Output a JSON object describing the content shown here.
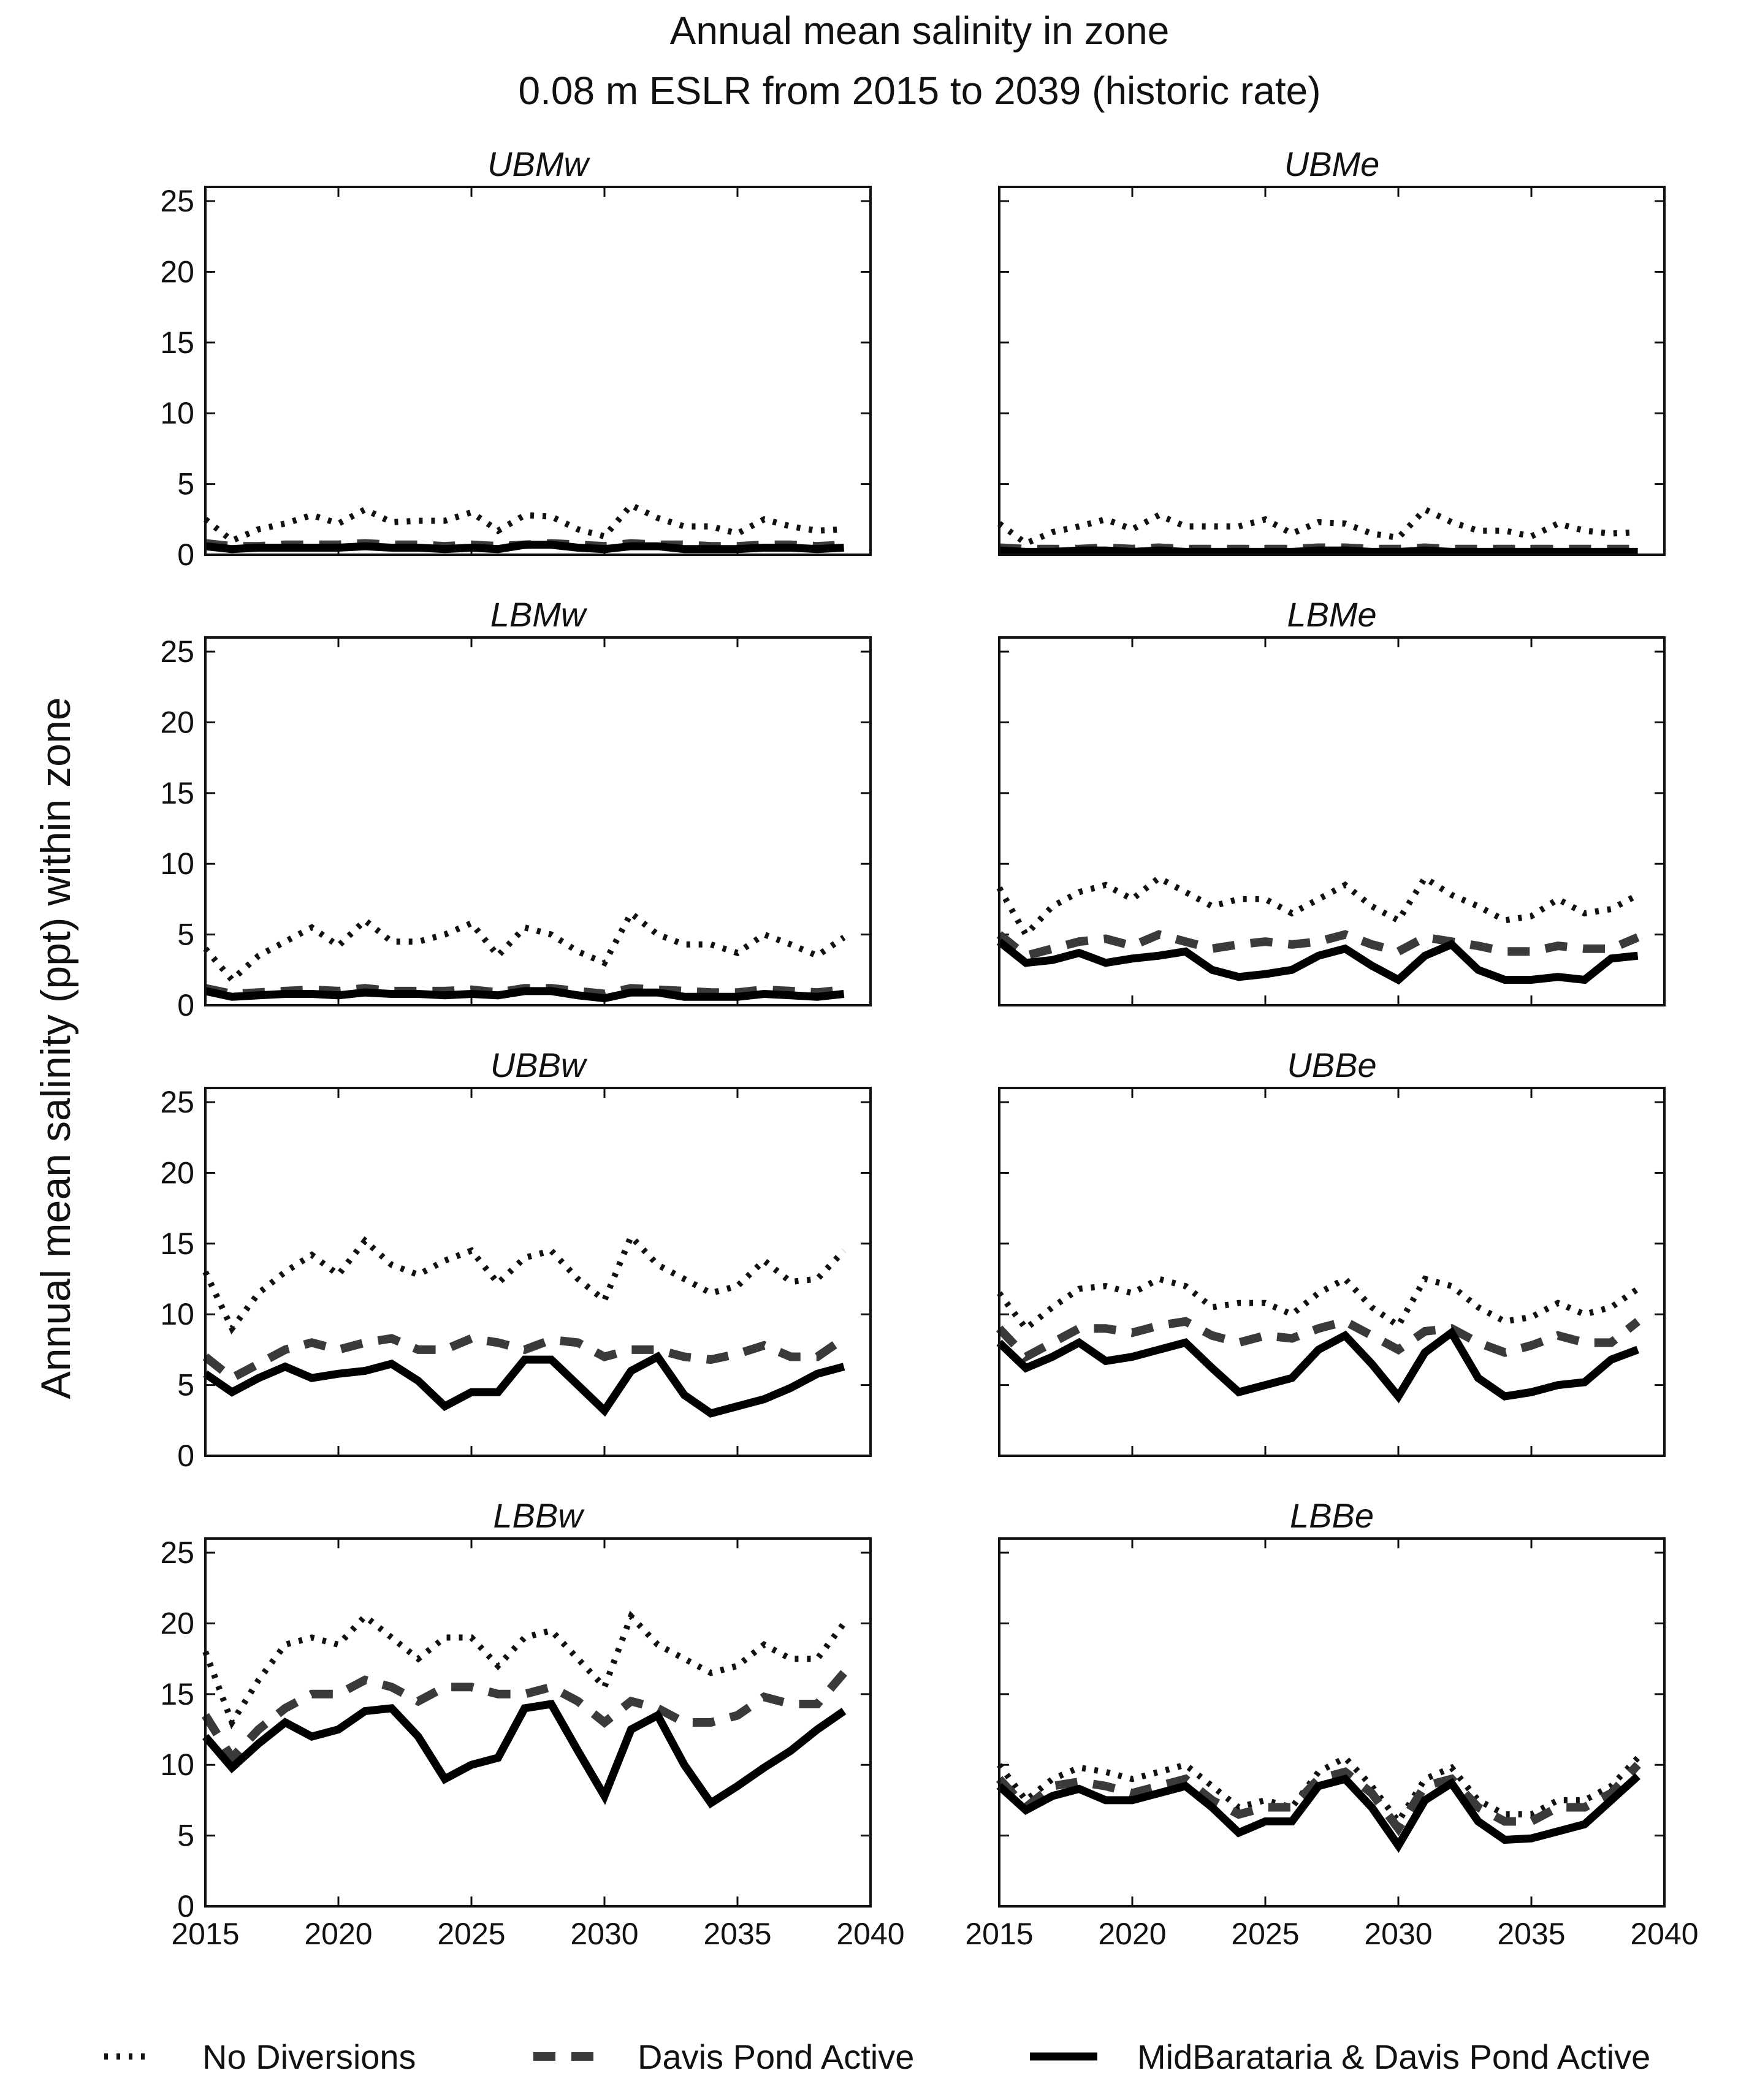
{
  "chart_data": {
    "type": "line",
    "title_lines": [
      "Annual mean salinity in zone",
      "0.08 m ESLR from 2015 to 2039 (historic rate)"
    ],
    "ylabel": "Annual mean salinity (ppt) within zone",
    "xlim": [
      2015,
      2040
    ],
    "ylim": [
      0,
      26
    ],
    "xticks": [
      "2015",
      "2020",
      "2025",
      "2030",
      "2035",
      "2040"
    ],
    "yticks": [
      "0",
      "5",
      "10",
      "15",
      "20",
      "25"
    ],
    "x": [
      2015,
      2016,
      2017,
      2018,
      2019,
      2020,
      2021,
      2022,
      2023,
      2024,
      2025,
      2026,
      2027,
      2028,
      2029,
      2030,
      2031,
      2032,
      2033,
      2034,
      2035,
      2036,
      2037,
      2038,
      2039
    ],
    "legend": [
      {
        "name": "No Diversions",
        "style": "dotted"
      },
      {
        "name": "Davis Pond Active",
        "style": "dashed"
      },
      {
        "name": "MidBarataria & Davis Pond Active",
        "style": "solid"
      }
    ],
    "colors": {
      "no_div": "#111111",
      "davis": "#3a3a3a",
      "mid": "#000000"
    },
    "panels": [
      {
        "title": "UBMw",
        "series": [
          {
            "name": "No Diversions",
            "values": [
              2.5,
              1.0,
              1.8,
              2.2,
              2.8,
              2.2,
              3.2,
              2.3,
              2.4,
              2.4,
              3.0,
              1.7,
              2.8,
              2.7,
              1.8,
              1.3,
              3.5,
              2.6,
              2.0,
              2.0,
              1.5,
              2.5,
              2.0,
              1.7,
              1.8
            ]
          },
          {
            "name": "Davis Pond Active",
            "values": [
              0.8,
              0.6,
              0.6,
              0.7,
              0.7,
              0.7,
              0.8,
              0.7,
              0.7,
              0.6,
              0.7,
              0.6,
              0.7,
              0.8,
              0.7,
              0.6,
              0.8,
              0.7,
              0.7,
              0.6,
              0.6,
              0.7,
              0.7,
              0.6,
              0.7
            ]
          },
          {
            "name": "MidBarataria & Davis Pond Active",
            "values": [
              0.6,
              0.4,
              0.5,
              0.5,
              0.5,
              0.5,
              0.6,
              0.5,
              0.5,
              0.4,
              0.5,
              0.4,
              0.7,
              0.7,
              0.5,
              0.4,
              0.6,
              0.6,
              0.4,
              0.4,
              0.4,
              0.5,
              0.5,
              0.4,
              0.5
            ]
          }
        ]
      },
      {
        "title": "UBMe",
        "series": [
          {
            "name": "No Diversions",
            "values": [
              2.2,
              0.8,
              1.6,
              2.0,
              2.5,
              1.8,
              2.8,
              2.0,
              2.0,
              2.0,
              2.5,
              1.5,
              2.3,
              2.2,
              1.5,
              1.2,
              3.2,
              2.3,
              1.7,
              1.7,
              1.3,
              2.2,
              1.7,
              1.5,
              1.6
            ]
          },
          {
            "name": "Davis Pond Active",
            "values": [
              0.5,
              0.4,
              0.4,
              0.4,
              0.5,
              0.4,
              0.5,
              0.4,
              0.4,
              0.4,
              0.4,
              0.4,
              0.5,
              0.5,
              0.4,
              0.4,
              0.5,
              0.4,
              0.4,
              0.4,
              0.4,
              0.4,
              0.4,
              0.4,
              0.4
            ]
          },
          {
            "name": "MidBarataria & Davis Pond Active",
            "values": [
              0.3,
              0.2,
              0.2,
              0.3,
              0.3,
              0.2,
              0.3,
              0.2,
              0.2,
              0.2,
              0.2,
              0.2,
              0.3,
              0.3,
              0.2,
              0.2,
              0.3,
              0.2,
              0.2,
              0.2,
              0.2,
              0.2,
              0.2,
              0.2,
              0.2
            ]
          }
        ]
      },
      {
        "title": "LBMw",
        "series": [
          {
            "name": "No Diversions",
            "values": [
              4.0,
              1.8,
              3.5,
              4.5,
              5.5,
              4.2,
              6.0,
              4.5,
              4.5,
              5.0,
              5.8,
              3.5,
              5.5,
              5.0,
              3.8,
              3.0,
              6.5,
              5.0,
              4.3,
              4.3,
              3.7,
              5.0,
              4.3,
              3.5,
              4.8
            ]
          },
          {
            "name": "Davis Pond Active",
            "values": [
              1.2,
              0.8,
              0.9,
              1.0,
              1.1,
              1.0,
              1.2,
              1.0,
              1.0,
              1.0,
              1.1,
              0.9,
              1.2,
              1.2,
              1.0,
              0.8,
              1.2,
              1.1,
              1.0,
              0.9,
              0.9,
              1.1,
              1.0,
              0.9,
              1.1
            ]
          },
          {
            "name": "MidBarataria & Davis Pond Active",
            "values": [
              1.0,
              0.6,
              0.7,
              0.8,
              0.8,
              0.7,
              0.9,
              0.8,
              0.8,
              0.7,
              0.8,
              0.7,
              1.0,
              1.0,
              0.7,
              0.5,
              0.9,
              0.9,
              0.6,
              0.6,
              0.6,
              0.8,
              0.7,
              0.6,
              0.8
            ]
          }
        ]
      },
      {
        "title": "LBMe",
        "series": [
          {
            "name": "No Diversions",
            "values": [
              8.3,
              5.0,
              7.0,
              8.0,
              8.5,
              7.5,
              9.0,
              8.0,
              7.0,
              7.5,
              7.5,
              6.5,
              7.5,
              8.5,
              7.0,
              6.0,
              9.0,
              7.8,
              7.0,
              6.0,
              6.3,
              7.5,
              6.5,
              6.8,
              7.8
            ]
          },
          {
            "name": "Davis Pond Active",
            "values": [
              5.0,
              3.5,
              4.0,
              4.5,
              4.7,
              4.2,
              5.0,
              4.5,
              4.0,
              4.3,
              4.5,
              4.3,
              4.5,
              5.0,
              4.3,
              3.8,
              4.8,
              4.5,
              4.2,
              3.8,
              3.8,
              4.2,
              4.0,
              4.0,
              4.8
            ]
          },
          {
            "name": "MidBarataria & Davis Pond Active",
            "values": [
              4.5,
              3.0,
              3.2,
              3.7,
              3.0,
              3.3,
              3.5,
              3.8,
              2.5,
              2.0,
              2.2,
              2.5,
              3.5,
              4.0,
              2.8,
              1.8,
              3.5,
              4.3,
              2.5,
              1.8,
              1.8,
              2.0,
              1.8,
              3.3,
              3.5
            ]
          }
        ]
      },
      {
        "title": "UBBw",
        "series": [
          {
            "name": "No Diversions",
            "values": [
              13.0,
              9.0,
              11.5,
              13.0,
              14.2,
              12.8,
              15.2,
              13.5,
              12.8,
              13.8,
              14.5,
              12.2,
              14.0,
              14.5,
              12.5,
              11.0,
              15.5,
              13.5,
              12.5,
              11.5,
              12.0,
              13.8,
              12.3,
              12.5,
              14.5
            ]
          },
          {
            "name": "Davis Pond Active",
            "values": [
              7.0,
              5.5,
              6.5,
              7.5,
              8.0,
              7.5,
              8.0,
              8.3,
              7.5,
              7.5,
              8.3,
              8.0,
              7.5,
              8.2,
              8.0,
              7.0,
              7.5,
              7.5,
              7.0,
              6.8,
              7.2,
              7.8,
              7.0,
              7.0,
              8.3
            ]
          },
          {
            "name": "MidBarataria & Davis Pond Active",
            "values": [
              5.8,
              4.5,
              5.5,
              6.3,
              5.5,
              5.8,
              6.0,
              6.5,
              5.3,
              3.5,
              4.5,
              4.5,
              6.8,
              6.8,
              5.0,
              3.2,
              6.0,
              7.0,
              4.3,
              3.0,
              3.5,
              4.0,
              4.8,
              5.8,
              6.3
            ]
          }
        ]
      },
      {
        "title": "UBBe",
        "series": [
          {
            "name": "No Diversions",
            "values": [
              11.5,
              9.0,
              10.5,
              11.8,
              12.0,
              11.5,
              12.5,
              12.0,
              10.5,
              10.8,
              10.8,
              10.0,
              11.5,
              12.5,
              10.5,
              9.2,
              12.5,
              12.0,
              10.5,
              9.5,
              9.8,
              10.8,
              10.0,
              10.5,
              11.8
            ]
          },
          {
            "name": "Davis Pond Active",
            "values": [
              9.0,
              7.0,
              8.0,
              9.0,
              9.0,
              8.7,
              9.2,
              9.5,
              8.5,
              8.0,
              8.5,
              8.3,
              9.0,
              9.5,
              8.5,
              7.5,
              8.8,
              9.0,
              8.0,
              7.3,
              7.8,
              8.5,
              8.0,
              8.0,
              9.5
            ]
          },
          {
            "name": "MidBarataria & Davis Pond Active",
            "values": [
              8.0,
              6.2,
              7.0,
              8.0,
              6.7,
              7.0,
              7.5,
              8.0,
              6.2,
              4.5,
              5.0,
              5.5,
              7.5,
              8.5,
              6.5,
              4.2,
              7.3,
              8.7,
              5.5,
              4.2,
              4.5,
              5.0,
              5.2,
              6.8,
              7.5
            ]
          }
        ]
      },
      {
        "title": "LBBw",
        "series": [
          {
            "name": "No Diversions",
            "values": [
              18.0,
              13.0,
              16.0,
              18.5,
              19.0,
              18.5,
              20.5,
              19.0,
              17.5,
              19.0,
              19.0,
              17.0,
              19.0,
              19.5,
              17.5,
              15.5,
              20.5,
              18.5,
              17.5,
              16.5,
              17.0,
              18.5,
              17.5,
              17.5,
              20.0
            ]
          },
          {
            "name": "Davis Pond Active",
            "values": [
              13.5,
              10.5,
              12.5,
              14.0,
              15.0,
              15.0,
              16.0,
              15.5,
              14.5,
              15.5,
              15.5,
              15.0,
              15.0,
              15.5,
              14.5,
              13.0,
              14.5,
              14.0,
              13.0,
              13.0,
              13.5,
              14.8,
              14.3,
              14.3,
              16.5
            ]
          },
          {
            "name": "MidBarataria & Davis Pond Active",
            "values": [
              12.0,
              9.8,
              11.5,
              13.0,
              12.0,
              12.5,
              13.8,
              14.0,
              12.0,
              9.0,
              10.0,
              10.5,
              14.0,
              14.3,
              11.0,
              7.8,
              12.5,
              13.5,
              10.0,
              7.3,
              8.5,
              9.8,
              11.0,
              12.5,
              13.8
            ]
          }
        ]
      },
      {
        "title": "LBBe",
        "series": [
          {
            "name": "No Diversions",
            "values": [
              10.0,
              7.5,
              9.0,
              9.8,
              9.5,
              9.0,
              9.5,
              10.0,
              8.5,
              7.0,
              7.5,
              7.0,
              9.5,
              10.5,
              8.5,
              6.0,
              9.0,
              9.8,
              7.5,
              6.5,
              6.5,
              7.5,
              7.5,
              8.5,
              10.5
            ]
          },
          {
            "name": "Davis Pond Active",
            "values": [
              9.0,
              7.0,
              8.5,
              8.8,
              8.5,
              8.0,
              8.5,
              9.0,
              7.5,
              6.5,
              7.0,
              7.0,
              9.0,
              9.5,
              8.0,
              5.5,
              8.5,
              9.0,
              7.0,
              6.0,
              6.0,
              7.0,
              7.0,
              8.0,
              10.0
            ]
          },
          {
            "name": "MidBarataria & Davis Pond Active",
            "values": [
              8.5,
              6.8,
              7.8,
              8.3,
              7.5,
              7.5,
              8.0,
              8.5,
              7.0,
              5.2,
              6.0,
              6.0,
              8.5,
              9.0,
              7.0,
              4.3,
              7.5,
              8.7,
              6.0,
              4.7,
              4.8,
              5.3,
              5.8,
              7.5,
              9.2
            ]
          }
        ]
      }
    ]
  }
}
